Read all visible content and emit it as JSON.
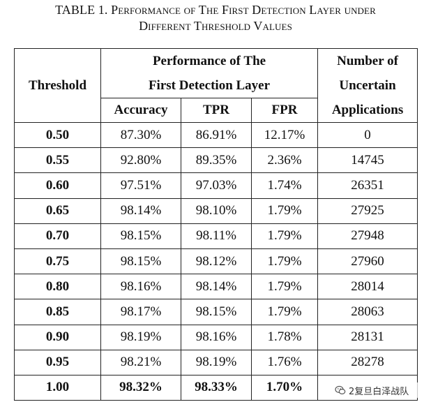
{
  "caption": {
    "label": "TABLE 1.",
    "line1": "Performance of The First Detection Layer under",
    "line2": "Different Threshold Values"
  },
  "header": {
    "threshold": "Threshold",
    "group_line1": "Performance of The",
    "group_line2": "First Detection Layer",
    "accuracy": "Accuracy",
    "tpr": "TPR",
    "fpr": "FPR",
    "uncertain_line1": "Number of",
    "uncertain_line2": "Uncertain",
    "uncertain_line3": "Applications"
  },
  "rows": [
    {
      "threshold": "0.50",
      "accuracy": "87.30%",
      "tpr": "86.91%",
      "fpr": "12.17%",
      "uncertain": "0"
    },
    {
      "threshold": "0.55",
      "accuracy": "92.80%",
      "tpr": "89.35%",
      "fpr": "2.36%",
      "uncertain": "14745"
    },
    {
      "threshold": "0.60",
      "accuracy": "97.51%",
      "tpr": "97.03%",
      "fpr": "1.74%",
      "uncertain": "26351"
    },
    {
      "threshold": "0.65",
      "accuracy": "98.14%",
      "tpr": "98.10%",
      "fpr": "1.79%",
      "uncertain": "27925"
    },
    {
      "threshold": "0.70",
      "accuracy": "98.15%",
      "tpr": "98.11%",
      "fpr": "1.79%",
      "uncertain": "27948"
    },
    {
      "threshold": "0.75",
      "accuracy": "98.15%",
      "tpr": "98.12%",
      "fpr": "1.79%",
      "uncertain": "27960"
    },
    {
      "threshold": "0.80",
      "accuracy": "98.16%",
      "tpr": "98.14%",
      "fpr": "1.79%",
      "uncertain": "28014"
    },
    {
      "threshold": "0.85",
      "accuracy": "98.17%",
      "tpr": "98.15%",
      "fpr": "1.79%",
      "uncertain": "28063"
    },
    {
      "threshold": "0.90",
      "accuracy": "98.19%",
      "tpr": "98.16%",
      "fpr": "1.78%",
      "uncertain": "28131"
    },
    {
      "threshold": "0.95",
      "accuracy": "98.21%",
      "tpr": "98.19%",
      "fpr": "1.76%",
      "uncertain": "28278"
    },
    {
      "threshold": "1.00",
      "accuracy": "98.32%",
      "tpr": "98.33%",
      "fpr": "1.70%",
      "uncertain": ""
    }
  ],
  "watermark": {
    "icon": "wechat-icon",
    "text": "2复旦白泽战队"
  }
}
